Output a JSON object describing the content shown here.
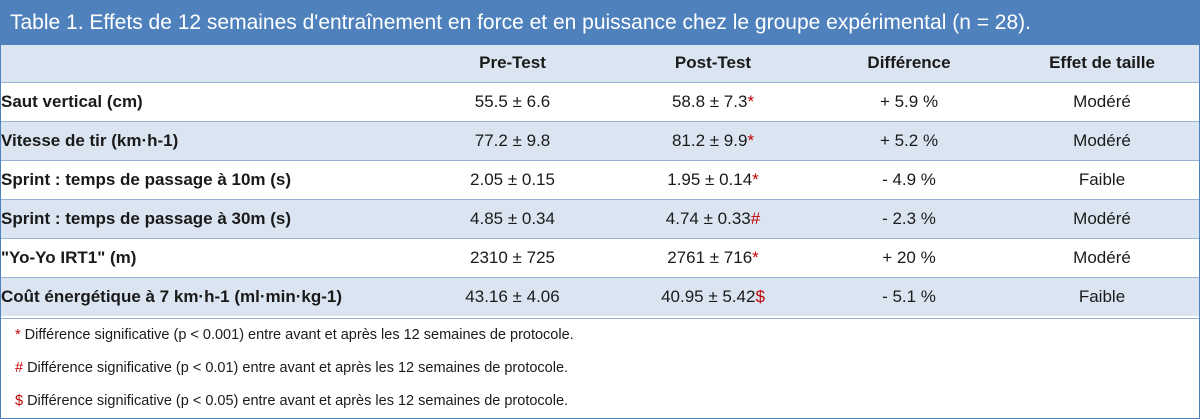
{
  "title": "Table 1. Effets de 12 semaines d'entraînement en force et en puissance chez le groupe expérimental (n = 28).",
  "columns": [
    "",
    "Pre-Test",
    "Post-Test",
    "Différence",
    "Effet de taille"
  ],
  "rows": [
    {
      "label": "Saut vertical (cm)",
      "pre": "55.5 ± 6.6",
      "post": "58.8 ± 7.3",
      "post_mark": "*",
      "diff": "+ 5.9 %",
      "effect": "Modéré"
    },
    {
      "label": "Vitesse de tir (km·h-1)",
      "pre": "77.2 ± 9.8",
      "post": "81.2 ± 9.9",
      "post_mark": "*",
      "diff": "+ 5.2 %",
      "effect": "Modéré"
    },
    {
      "label": "Sprint : temps de passage à 10m (s)",
      "pre": "2.05 ± 0.15",
      "post": "1.95 ± 0.14",
      "post_mark": "*",
      "diff": "- 4.9 %",
      "effect": "Faible"
    },
    {
      "label": "Sprint : temps de passage à 30m (s)",
      "pre": "4.85 ± 0.34",
      "post": "4.74 ± 0.33",
      "post_mark": "#",
      "diff": "- 2.3 %",
      "effect": "Modéré"
    },
    {
      "label": "\"Yo-Yo IRT1\" (m)",
      "pre": "2310 ± 725",
      "post": "2761 ± 716",
      "post_mark": "*",
      "diff": "+ 20 %",
      "effect": "Modéré"
    },
    {
      "label": "Coût énergétique à 7 km·h-1 (ml·min·kg-1)",
      "pre": "43.16 ± 4.06",
      "post": "40.95 ± 5.42",
      "post_mark": "$",
      "diff": "- 5.1 %",
      "effect": "Faible"
    }
  ],
  "notes": [
    {
      "symbol": "*",
      "text": "Différence significative (p < 0.001) entre avant et après les 12 semaines de protocole."
    },
    {
      "symbol": "#",
      "text": "Différence significative (p < 0.01) entre avant et après les 12 semaines de protocole."
    },
    {
      "symbol": "$",
      "text": "Différence significative (p < 0.05) entre avant et après les 12 semaines de protocole."
    }
  ],
  "colors": {
    "header": "#4f81bd",
    "band": "#dbe5f1",
    "significance": "#c00000"
  }
}
